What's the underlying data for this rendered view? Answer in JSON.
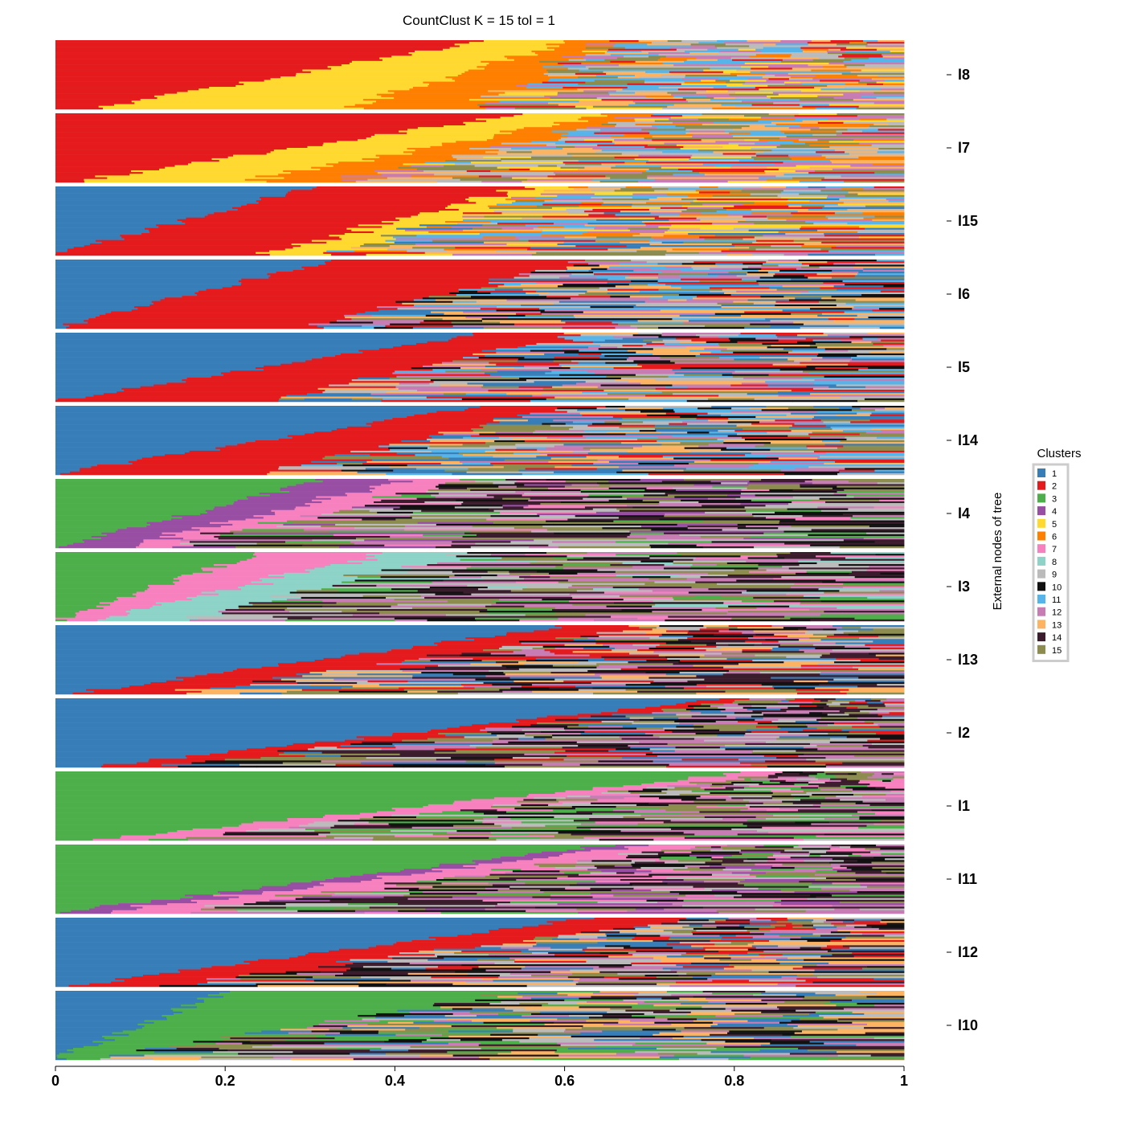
{
  "chart_data": {
    "type": "bar",
    "orientation": "horizontal-stacked-structure",
    "title": "CountClust K =  15 tol =  1",
    "ylabel": "External nodes of tree",
    "xlim": [
      0,
      1
    ],
    "xticks": [
      0,
      0.2,
      0.4,
      0.6,
      0.8,
      1
    ],
    "xtick_labels": [
      "0",
      "0.2",
      "0.4",
      "0.6",
      "0.8",
      "1"
    ],
    "legend": {
      "title": "Clusters",
      "placement": "right",
      "entries": [
        "1",
        "2",
        "3",
        "4",
        "5",
        "6",
        "7",
        "8",
        "9",
        "10",
        "11",
        "12",
        "13",
        "14",
        "15"
      ]
    },
    "cluster_colors": [
      "#377EB8",
      "#E41A1C",
      "#4DAF4A",
      "#984EA3",
      "#FFD92F",
      "#FF7F00",
      "#F781BF",
      "#8DD3C7",
      "#BBBBBB",
      "#111111",
      "#56B4E9",
      "#C77CB3",
      "#FDB462",
      "#3A1C2C",
      "#8C8C4E"
    ],
    "panels": [
      {
        "label": "l8",
        "dominant": [
          2,
          5,
          6
        ],
        "dominant_start": [
          0.5,
          0.1,
          0.05
        ],
        "dominant_end": [
          0.05,
          0.3,
          0.15
        ],
        "rest": [
          15,
          11,
          12,
          9,
          13
        ]
      },
      {
        "label": "l7",
        "dominant": [
          2,
          5,
          6
        ],
        "dominant_start": [
          0.55,
          0.1,
          0.05
        ],
        "dominant_end": [
          0.02,
          0.2,
          0.12
        ],
        "rest": [
          12,
          11,
          9,
          15,
          13
        ]
      },
      {
        "label": "l15",
        "dominant": [
          1,
          2,
          5
        ],
        "dominant_start": [
          0.3,
          0.25,
          0.05
        ],
        "dominant_end": [
          0.0,
          0.25,
          0.08
        ],
        "rest": [
          6,
          12,
          11,
          9,
          13,
          15
        ]
      },
      {
        "label": "l6",
        "dominant": [
          1,
          2
        ],
        "dominant_start": [
          0.32,
          0.3
        ],
        "dominant_end": [
          0.0,
          0.3
        ],
        "rest": [
          12,
          11,
          9,
          13,
          10,
          15
        ]
      },
      {
        "label": "l5",
        "dominant": [
          1,
          2
        ],
        "dominant_start": [
          0.5,
          0.12
        ],
        "dominant_end": [
          0.0,
          0.25
        ],
        "rest": [
          12,
          11,
          9,
          13,
          10,
          15
        ]
      },
      {
        "label": "l14",
        "dominant": [
          1,
          2
        ],
        "dominant_start": [
          0.5,
          0.1
        ],
        "dominant_end": [
          0.0,
          0.25
        ],
        "rest": [
          12,
          11,
          9,
          13,
          10,
          15
        ]
      },
      {
        "label": "l4",
        "dominant": [
          3,
          4,
          7
        ],
        "dominant_start": [
          0.32,
          0.1,
          0.08
        ],
        "dominant_end": [
          0.0,
          0.08,
          0.05
        ],
        "rest": [
          12,
          10,
          14,
          9,
          15
        ]
      },
      {
        "label": "l3",
        "dominant": [
          3,
          7,
          8
        ],
        "dominant_start": [
          0.24,
          0.15,
          0.1
        ],
        "dominant_end": [
          0.0,
          0.05,
          0.1
        ],
        "rest": [
          12,
          9,
          10,
          14,
          15
        ]
      },
      {
        "label": "l13",
        "dominant": [
          1,
          2
        ],
        "dominant_start": [
          0.6,
          0.1
        ],
        "dominant_end": [
          0.02,
          0.12
        ],
        "rest": [
          12,
          9,
          13,
          10,
          14,
          15
        ]
      },
      {
        "label": "l2",
        "dominant": [
          1,
          2
        ],
        "dominant_start": [
          0.78,
          0.04
        ],
        "dominant_end": [
          0.05,
          0.08
        ],
        "rest": [
          12,
          9,
          10,
          14,
          15
        ]
      },
      {
        "label": "l1",
        "dominant": [
          3,
          7
        ],
        "dominant_start": [
          0.82,
          0.05
        ],
        "dominant_end": [
          0.05,
          0.08
        ],
        "rest": [
          12,
          9,
          10,
          14,
          15
        ]
      },
      {
        "label": "l11",
        "dominant": [
          3,
          4,
          7
        ],
        "dominant_start": [
          0.65,
          0.04,
          0.08
        ],
        "dominant_end": [
          0.0,
          0.05,
          0.08
        ],
        "rest": [
          12,
          10,
          14,
          9,
          15
        ]
      },
      {
        "label": "l12",
        "dominant": [
          1,
          2
        ],
        "dominant_start": [
          0.62,
          0.12
        ],
        "dominant_end": [
          0.02,
          0.12
        ],
        "rest": [
          12,
          9,
          13,
          10,
          14,
          15
        ]
      },
      {
        "label": "l10",
        "dominant": [
          1,
          3
        ],
        "dominant_start": [
          0.2,
          0.35
        ],
        "dominant_end": [
          0.0,
          0.05
        ],
        "rest": [
          12,
          9,
          13,
          10,
          14,
          15
        ]
      }
    ]
  }
}
